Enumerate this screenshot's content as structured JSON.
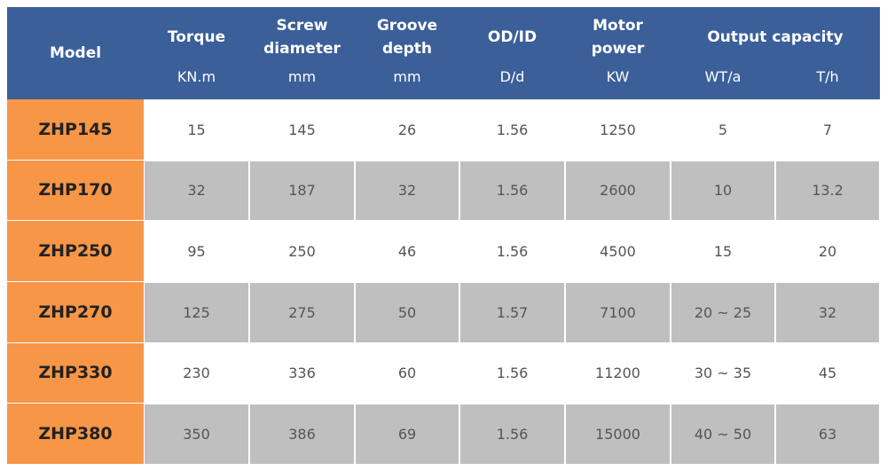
{
  "header": {
    "model": "Model",
    "columns": [
      {
        "title": "Torque",
        "unit": "KN.m"
      },
      {
        "title": "Screw diameter",
        "unit": "mm"
      },
      {
        "title": "Groove depth",
        "unit": "mm"
      },
      {
        "title": "OD/ID",
        "unit": "D/d"
      },
      {
        "title": "Motor power",
        "unit": "KW"
      }
    ],
    "output": {
      "title": "Output capacity",
      "units": [
        "WT/a",
        "T/h"
      ]
    }
  },
  "rows": [
    [
      "ZHP145",
      "15",
      "145",
      "26",
      "1.56",
      "1250",
      "5",
      "7"
    ],
    [
      "ZHP170",
      "32",
      "187",
      "32",
      "1.56",
      "2600",
      "10",
      "13.2"
    ],
    [
      "ZHP250",
      "95",
      "250",
      "46",
      "1.56",
      "4500",
      "15",
      "20"
    ],
    [
      "ZHP270",
      "125",
      "275",
      "50",
      "1.57",
      "7100",
      "20 ~ 25",
      "32"
    ],
    [
      "ZHP330",
      "230",
      "336",
      "60",
      "1.56",
      "11200",
      "30 ~ 35",
      "45"
    ],
    [
      "ZHP380",
      "350",
      "386",
      "69",
      "1.56",
      "15000",
      "40 ~ 50",
      "63"
    ]
  ]
}
